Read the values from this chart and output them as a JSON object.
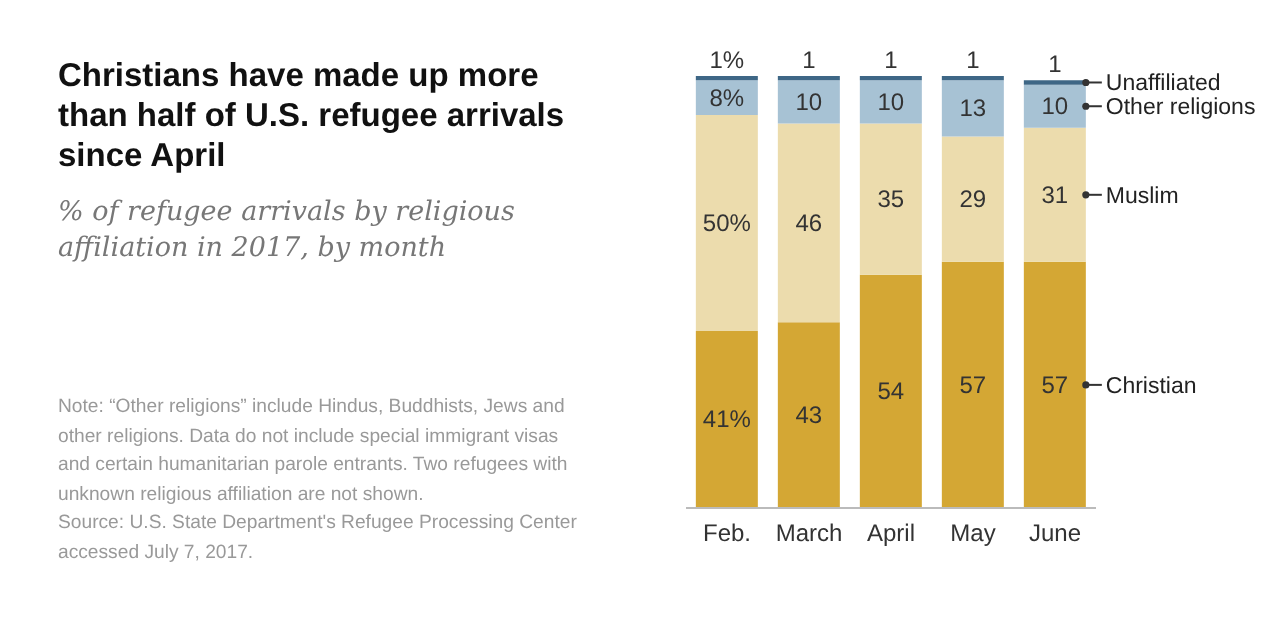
{
  "chart_data": {
    "type": "bar",
    "stacked": true,
    "title": "Christians have made up more than half of U.S. refugee arrivals since April",
    "subtitle": "% of refugee arrivals by religious affiliation in 2017, by month",
    "categories": [
      "Feb.",
      "March",
      "April",
      "May",
      "June"
    ],
    "series": [
      {
        "name": "Christian",
        "color": "#d4a734",
        "values": [
          41,
          43,
          54,
          57,
          57
        ],
        "value_labels": [
          "41%",
          "43",
          "54",
          "57",
          "57"
        ]
      },
      {
        "name": "Muslim",
        "color": "#ecdcad",
        "values": [
          50,
          46,
          35,
          29,
          31
        ],
        "value_labels": [
          "50%",
          "46",
          "35",
          "29",
          "31"
        ]
      },
      {
        "name": "Other religions",
        "color": "#a7c2d4",
        "values": [
          8,
          10,
          10,
          13,
          10
        ],
        "value_labels": [
          "8%",
          "10",
          "10",
          "13",
          "10"
        ]
      },
      {
        "name": "Unaffiliated",
        "color": "#3e6786",
        "values": [
          1,
          1,
          1,
          1,
          1
        ],
        "value_labels": [
          "1%",
          "1",
          "1",
          "1",
          "1"
        ]
      }
    ],
    "legend": false,
    "annotations": [
      "Note: “Other religions” include Hindus, Buddhists, Jews and other religions. Data do not include special immigrant visas and certain humanitarian parole entrants. Two refugees with unknown religious affiliation are not shown.",
      "Source: U.S. State Department's Refugee Processing Center accessed July 7, 2017."
    ]
  }
}
